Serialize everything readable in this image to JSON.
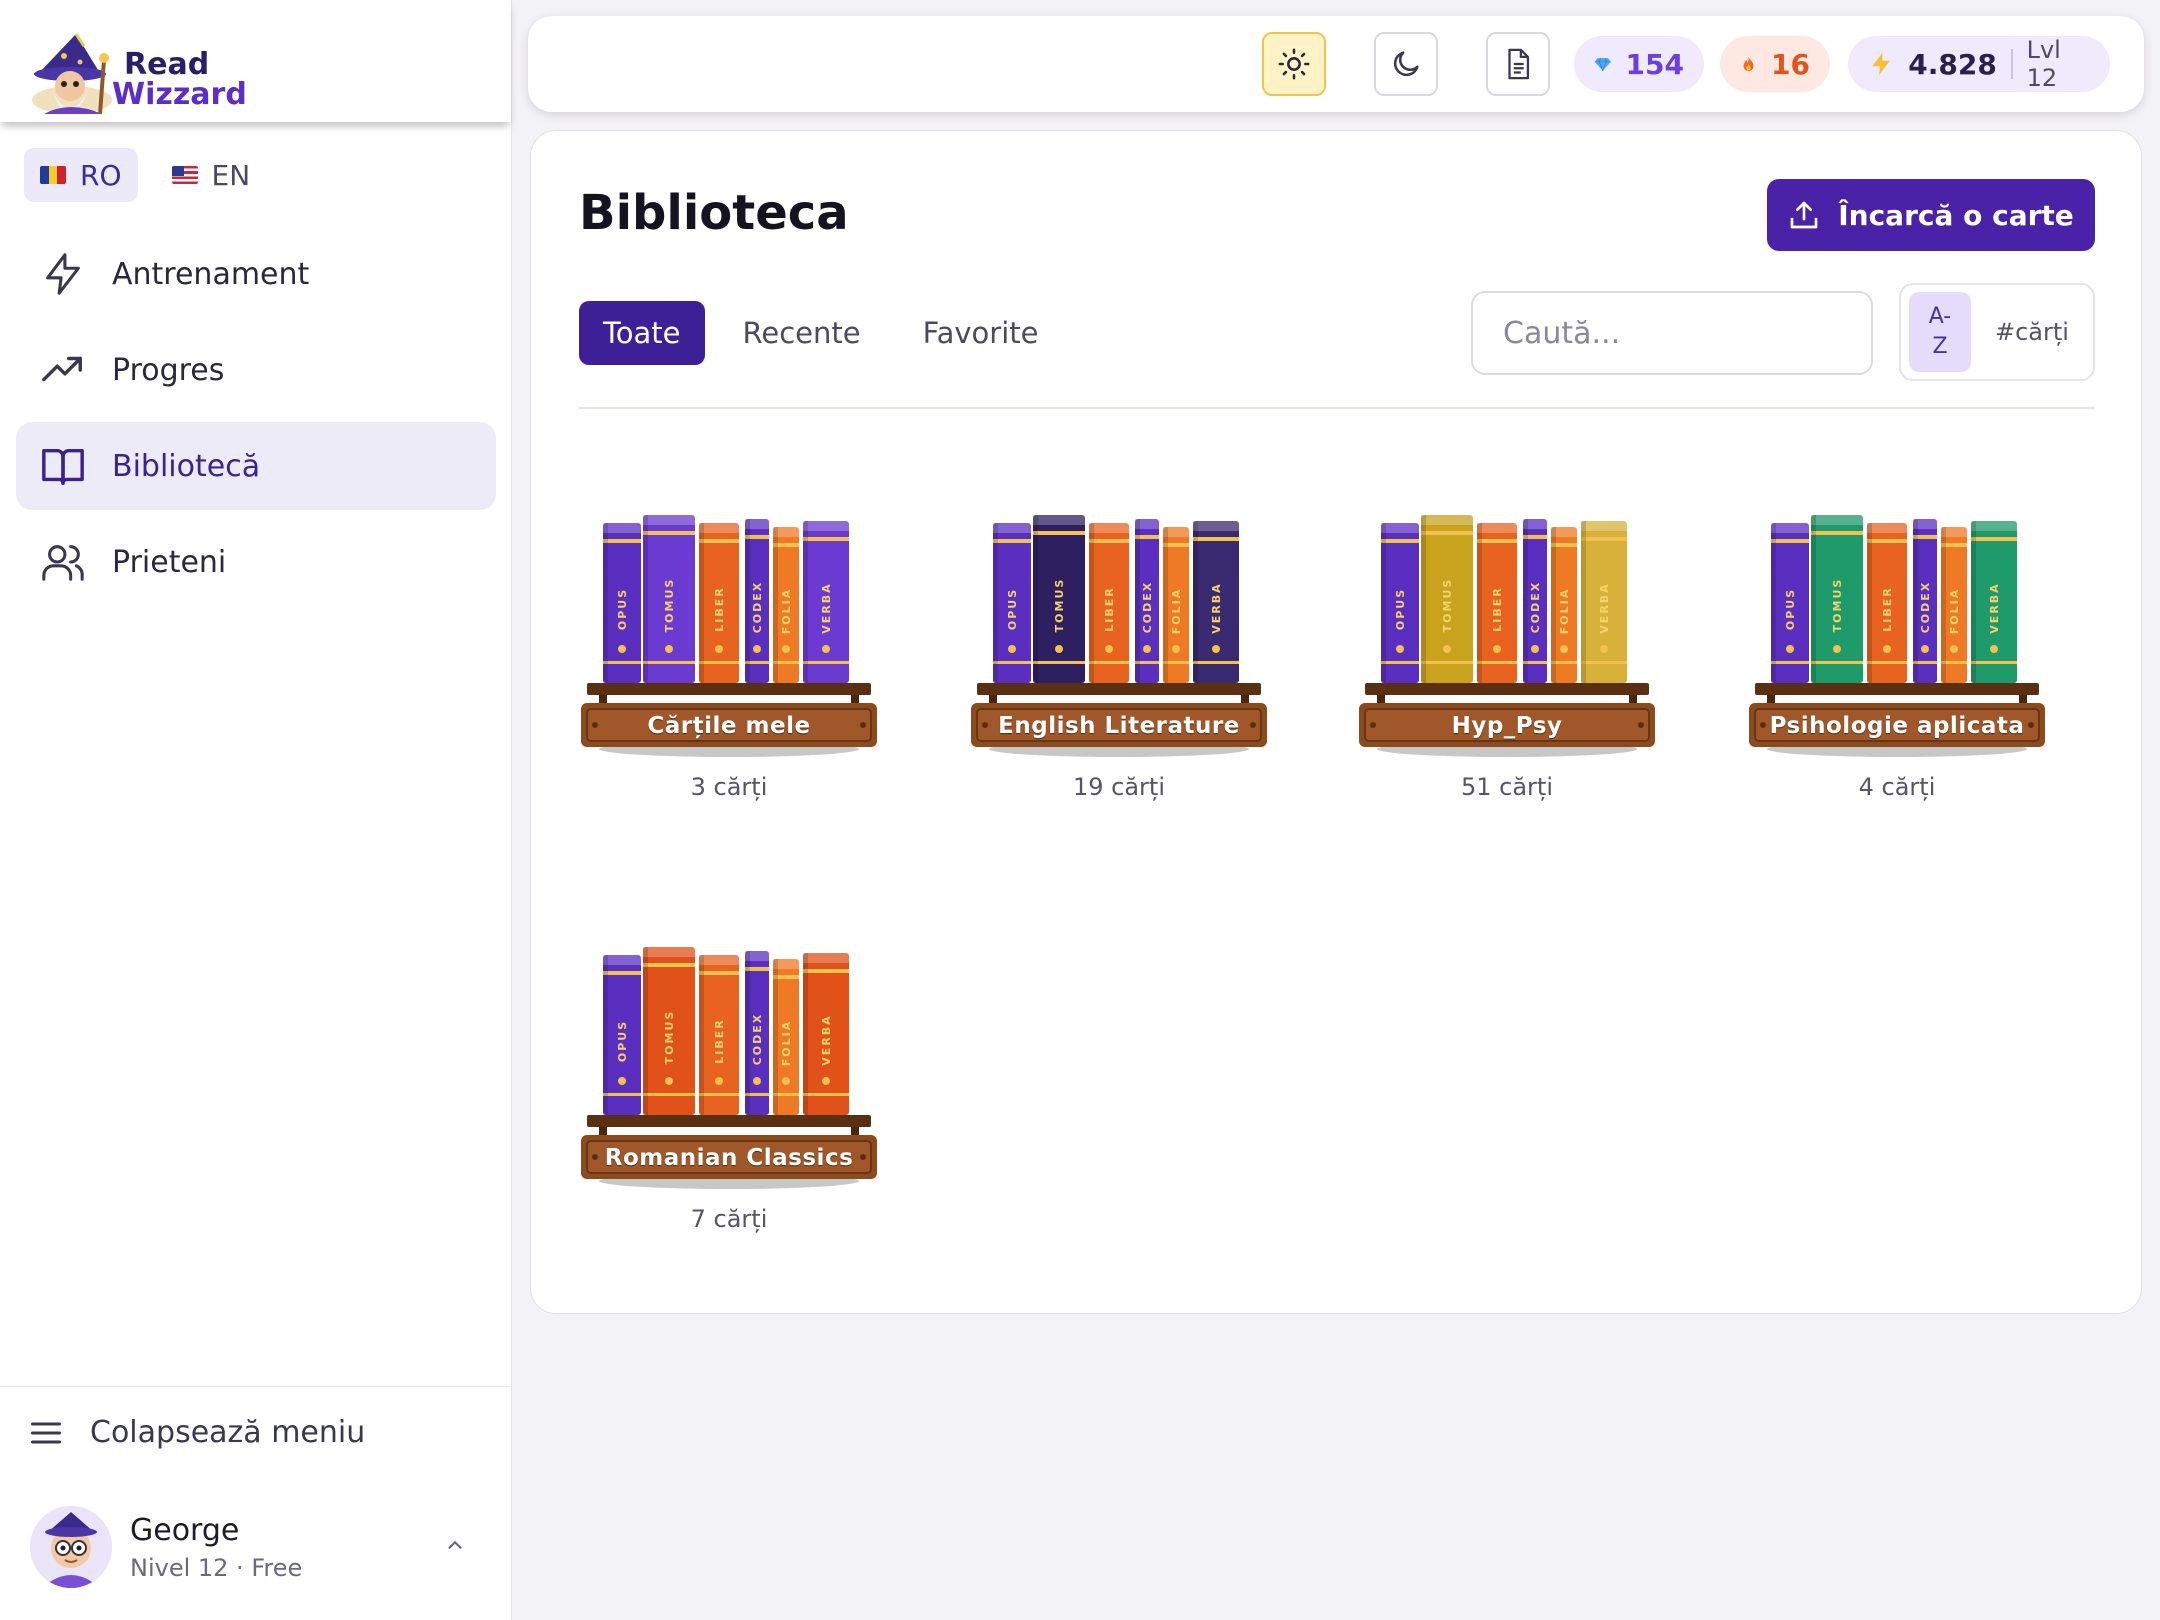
{
  "app": {
    "logo_line1": "Read",
    "logo_line2": "Wizzard"
  },
  "languages": [
    {
      "code": "RO",
      "active": true
    },
    {
      "code": "EN",
      "active": false
    }
  ],
  "nav": [
    {
      "label": "Antrenament",
      "icon": "bolt-icon",
      "active": false
    },
    {
      "label": "Progres",
      "icon": "trend-up-icon",
      "active": false
    },
    {
      "label": "Bibliotecă",
      "icon": "book-open-icon",
      "active": true
    },
    {
      "label": "Prieteni",
      "icon": "users-icon",
      "active": false
    }
  ],
  "sidebar_footer": {
    "collapse_label": "Colapsează meniu",
    "user_name": "George",
    "user_sub": "Nivel 12 · Free"
  },
  "topbar": {
    "gems": "154",
    "streak": "16",
    "xp": "4.828",
    "level": "Lvl 12"
  },
  "colors": {
    "accent": "#4a22a8",
    "tab_active": "#3d1f96",
    "shelf_wood": "#8a4b1f"
  },
  "library": {
    "title": "Biblioteca",
    "upload_label": "Încarcă o carte",
    "tabs": [
      "Toate",
      "Recente",
      "Favorite"
    ],
    "active_tab": 0,
    "search_placeholder": "Caută...",
    "sort_az_top": "A-",
    "sort_az_bottom": "Z",
    "sort_count": "#cărți",
    "shelves": [
      {
        "name": "Cărțile mele",
        "count": "3 cărți",
        "theme": "purple"
      },
      {
        "name": "English Literature",
        "count": "19 cărți",
        "theme": "dark"
      },
      {
        "name": "Hyp_Psy",
        "count": "51 cărți",
        "theme": "yellow"
      },
      {
        "name": "Psihologie aplicata",
        "count": "4 cărți",
        "theme": "green"
      },
      {
        "name": "Romanian Classics",
        "count": "7 cărți",
        "theme": "orange"
      }
    ],
    "spine_labels": [
      "OPUS",
      "TOMUS",
      "LIBER",
      "CODEX",
      "FOLIA",
      "VERBA"
    ]
  }
}
